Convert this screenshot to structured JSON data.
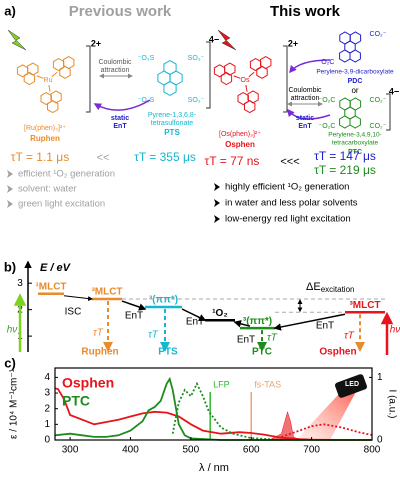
{
  "panel_a": {
    "label": "a)",
    "previous_title": "Previous work",
    "this_title": "This work",
    "ruphen": {
      "metal": "Ru",
      "charge": "2+",
      "formula": "[Ru(phen)₃]²⁺",
      "name": "Ruphen"
    },
    "pts": {
      "charge": "4−",
      "groups": [
        "⁻O₃S",
        "SO₃⁻",
        "⁻O₃S",
        "SO₃⁻"
      ],
      "name_1": "Pyrene-1,3,6,8-",
      "name_2": "tetrasulfonate",
      "abbr": "PTS"
    },
    "left_coulombic": [
      "Coulombic",
      "attraction"
    ],
    "left_static": [
      "static",
      "EnT"
    ],
    "left_lifetimes": [
      "τT = 1.1 μs",
      "<<",
      "τT = 355 μs"
    ],
    "left_bullets": [
      "efficient ¹O₂ generation",
      "solvent: water",
      "green light excitation"
    ],
    "osphen": {
      "metal": "Os",
      "charge": "2+",
      "formula": "[Os(phen)₃]²⁺",
      "name": "Osphen"
    },
    "right_coulombic": [
      "Coulombic",
      "attraction"
    ],
    "right_static": [
      "static",
      "EnT"
    ],
    "pdc": {
      "groups": [
        "CO₂⁻",
        "⁻O₂C"
      ],
      "name": "Perylene-3,9-dicarboxylate",
      "abbr": "PDC"
    },
    "or": "or",
    "ptc": {
      "charge": "4−",
      "groups": [
        "⁻O₂C",
        "CO₂⁻",
        "⁻O₂C",
        "CO₂⁻"
      ],
      "name_1": "Perylene-3,4,9,10-",
      "name_2": "tetracarboxylate",
      "abbr": "PTC"
    },
    "right_lifetimes": [
      "τT = 77 ns",
      "<<<",
      "τT = 147 μs",
      "τT = 219 μs"
    ],
    "right_bullets": [
      "highly efficient ¹O₂ generation",
      "in water and less polar solvents",
      "low-energy red light excitation"
    ]
  },
  "panel_b": {
    "label": "b)",
    "axis_label": "E / eV",
    "ylim": [
      0.4,
      3.8
    ],
    "yticks": [
      1,
      2,
      3
    ],
    "levels": [
      {
        "label": "¹MLCT",
        "energy": 2.6,
        "color": "#e98b2a"
      },
      {
        "label": "³MLCT",
        "energy": 2.4,
        "color": "#e98b2a"
      },
      {
        "label": "³(ππ*)",
        "energy": 2.1,
        "color": "#17b6cf"
      },
      {
        "label": "¹O₂",
        "energy": 1.6,
        "color": "#000000"
      },
      {
        "label": "³(ππ*)",
        "energy": 1.3,
        "color": "#1c8c1c"
      },
      {
        "label": "³MLCT",
        "energy": 1.9,
        "color": "#e8141b"
      }
    ],
    "hv": [
      "hν",
      "hν"
    ],
    "isc": "ISC",
    "ent": [
      "EnT",
      "EnT",
      "EnT",
      "EnT"
    ],
    "tau": [
      "τT",
      "τT",
      "τT",
      "τT"
    ],
    "names": [
      "Ruphen",
      "PTS",
      "PTC",
      "Osphen"
    ],
    "delta_e": "ΔE",
    "delta_e_sub": "excitation"
  },
  "chart_data": {
    "type": "line",
    "label": "c)",
    "x_label": "λ / nm",
    "y_label": "ε / 10⁴ M⁻¹cm⁻¹",
    "y2_label": "I (a.u.)",
    "xlim": [
      275,
      800
    ],
    "xticks": [
      300,
      400,
      500,
      600,
      700,
      800
    ],
    "ylim": [
      0,
      4.6
    ],
    "yticks": [
      0,
      1,
      2,
      3,
      4
    ],
    "y2lim": [
      0,
      1.15
    ],
    "y2ticks": [
      0,
      1
    ],
    "series": [
      {
        "name": "Osphen",
        "color": "#e8141b",
        "x": [
          275,
          280,
          290,
          300,
          320,
          340,
          360,
          380,
          400,
          420,
          440,
          460,
          480,
          500,
          520,
          550,
          580,
          600,
          620,
          650,
          680,
          700,
          750,
          800
        ],
        "values": [
          3.3,
          3.25,
          2.6,
          1.6,
          1.3,
          1.0,
          1.15,
          1.3,
          1.5,
          1.7,
          1.8,
          1.75,
          1.5,
          1.0,
          0.6,
          0.4,
          0.5,
          0.45,
          0.35,
          0.15,
          0.05,
          0.02,
          0,
          0
        ]
      },
      {
        "name": "PTC",
        "color": "#1c8c1c",
        "x": [
          275,
          300,
          320,
          340,
          360,
          380,
          400,
          420,
          430,
          440,
          450,
          460,
          465,
          470,
          480,
          490,
          500,
          550,
          800
        ],
        "values": [
          0.3,
          0.4,
          0.3,
          0.2,
          0.2,
          0.3,
          0.6,
          1.2,
          1.9,
          2.1,
          2.5,
          3.6,
          3.9,
          3.2,
          1.0,
          0.3,
          0.1,
          0,
          0
        ]
      },
      {
        "color": "#1c8c1c",
        "axis": "y2",
        "dash": "dotted",
        "x": [
          470,
          480,
          490,
          500,
          510,
          520,
          530,
          550,
          570,
          600,
          650
        ],
        "values": [
          0.1,
          0.6,
          0.8,
          0.7,
          0.9,
          0.7,
          0.45,
          0.2,
          0.1,
          0.03,
          0
        ]
      },
      {
        "color": "#e8141b",
        "axis": "y2",
        "dash": "dotted",
        "x": [
          650,
          680,
          700,
          720,
          750,
          780,
          800
        ],
        "values": [
          0.05,
          0.15,
          0.22,
          0.25,
          0.2,
          0.12,
          0.08
        ]
      },
      {
        "color": "#e8141b",
        "axis": "y2",
        "fill": true,
        "x": [
          630,
          650,
          660,
          665,
          670,
          680
        ],
        "values": [
          0,
          0.1,
          0.45,
          0.3,
          0.05,
          0
        ]
      }
    ],
    "annotations": [
      {
        "text": "LFP",
        "x": 532,
        "color": "#2eb82e"
      },
      {
        "text": "fs-TAS",
        "x": 600,
        "color": "#f0a070"
      }
    ],
    "led": "LED"
  }
}
